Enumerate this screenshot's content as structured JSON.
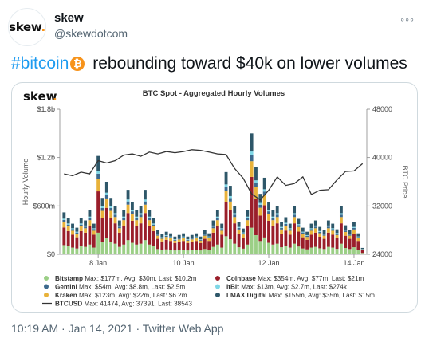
{
  "tweet": {
    "display_name": "skew",
    "handle": "@skewdotcom",
    "hashtag": "#bitcoin",
    "text": "rebounding toward $40k on lower volumes",
    "timestamp": "10:19 AM · Jan 14, 2021",
    "separator": "·",
    "source": "Twitter Web App",
    "more_label": "◦◦◦"
  },
  "avatar_logo": {
    "text": "skew",
    "dot": "."
  },
  "chart_logo": {
    "text": "skew",
    "dot": "."
  },
  "colors": {
    "accent": "#1d9bf0",
    "bitcoin_orange": "#f7931a",
    "text_secondary": "#536471",
    "Bitstamp": "#9bcf86",
    "Coinbase": "#9a1e2a",
    "Gemini": "#3d6a8e",
    "ItBit": "#7fd7e6",
    "Kraken": "#e8b23a",
    "LMAX Digital": "#2e5769",
    "BTCUSD": "#333333"
  },
  "chart_data": {
    "type": "bar",
    "title": "BTC Spot - Aggregated Hourly Volumes",
    "ylabel": "Hourly Volume",
    "y2label": "BTC Price",
    "ylim": [
      0,
      1.8
    ],
    "y_unit": "billion USD",
    "y_ticks": [
      "$0",
      "$600m",
      "$1.2b",
      "$1.8b"
    ],
    "y_tick_values": [
      0,
      0.6,
      1.2,
      1.8
    ],
    "y2lim": [
      24000,
      48000
    ],
    "y2_ticks": [
      "24000",
      "32000",
      "40000",
      "48000"
    ],
    "y2_tick_values": [
      24000,
      32000,
      40000,
      48000
    ],
    "x_tick_labels": [
      "8 Jan",
      "10 Jan",
      "12 Jan",
      "14 Jan"
    ],
    "x_tick_positions": [
      8,
      10,
      12,
      14
    ],
    "x_range": [
      7.1,
      14.3
    ],
    "grid": false,
    "legend_placement": "bottom",
    "stack_order": [
      "Bitstamp",
      "Coinbase",
      "Kraken",
      "Gemini",
      "ItBit",
      "LMAX Digital"
    ],
    "legend": [
      {
        "name": "Bitstamp",
        "stats": "Max: $177m, Avg: $30m, Last: $10.2m"
      },
      {
        "name": "Coinbase",
        "stats": "Max: $354m, Avg: $77m, Last: $21m"
      },
      {
        "name": "Gemini",
        "stats": "Max: $54m, Avg: $8.8m, Last: $2.5m"
      },
      {
        "name": "ItBit",
        "stats": "Max: $13m, Avg: $2.7m, Last: $274k"
      },
      {
        "name": "Kraken",
        "stats": "Max: $123m, Avg: $22m, Last: $6.2m"
      },
      {
        "name": "LMAX Digital",
        "stats": "Max: $155m, Avg: $35m, Last: $15m"
      },
      {
        "name": "BTCUSD",
        "stats": "Max: 41474, Avg: 37391, Last: 38543"
      }
    ],
    "bars_x": [
      7.2,
      7.3,
      7.4,
      7.5,
      7.6,
      7.7,
      7.8,
      7.9,
      8.0,
      8.1,
      8.2,
      8.3,
      8.4,
      8.5,
      8.6,
      8.7,
      8.8,
      8.9,
      9.0,
      9.1,
      9.2,
      9.3,
      9.4,
      9.5,
      9.6,
      9.7,
      9.8,
      9.9,
      10.0,
      10.1,
      10.2,
      10.3,
      10.4,
      10.5,
      10.6,
      10.7,
      10.8,
      10.9,
      11.0,
      11.1,
      11.2,
      11.3,
      11.4,
      11.5,
      11.6,
      11.7,
      11.8,
      11.9,
      12.0,
      12.1,
      12.2,
      12.3,
      12.4,
      12.5,
      12.6,
      12.7,
      12.8,
      12.9,
      13.0,
      13.1,
      13.2,
      13.3,
      13.4,
      13.5,
      13.6,
      13.7,
      13.8,
      13.9,
      14.0,
      14.1,
      14.2
    ],
    "totals": [
      0.52,
      0.45,
      0.38,
      0.33,
      0.45,
      0.42,
      0.55,
      0.38,
      1.22,
      0.7,
      0.9,
      0.7,
      0.6,
      0.42,
      0.55,
      0.8,
      0.65,
      0.55,
      0.6,
      0.8,
      0.55,
      0.45,
      0.3,
      0.25,
      0.28,
      0.26,
      0.22,
      0.24,
      0.26,
      0.22,
      0.24,
      0.26,
      0.22,
      0.3,
      0.26,
      0.42,
      0.55,
      0.38,
      1.02,
      0.85,
      0.6,
      0.4,
      0.32,
      0.55,
      1.5,
      1.08,
      0.75,
      0.95,
      0.65,
      0.55,
      0.6,
      0.4,
      0.46,
      0.38,
      0.6,
      0.44,
      0.33,
      0.28,
      0.38,
      0.42,
      0.34,
      0.3,
      0.42,
      0.38,
      0.31,
      0.6,
      0.36,
      0.3,
      0.4,
      0.26,
      0.08
    ],
    "price_x": [
      7.2,
      7.4,
      7.6,
      7.8,
      8.0,
      8.2,
      8.4,
      8.6,
      8.8,
      9.0,
      9.2,
      9.4,
      9.6,
      9.8,
      10.0,
      10.2,
      10.4,
      10.6,
      10.8,
      11.0,
      11.2,
      11.4,
      11.6,
      11.8,
      12.0,
      12.2,
      12.4,
      12.6,
      12.8,
      13.0,
      13.2,
      13.4,
      13.6,
      13.8,
      14.0,
      14.2
    ],
    "price_y": [
      37300,
      37000,
      37600,
      37300,
      39500,
      39100,
      39500,
      40400,
      40600,
      40200,
      40900,
      40600,
      41000,
      40800,
      41000,
      41300,
      41200,
      40900,
      40600,
      40500,
      38200,
      36600,
      34000,
      33000,
      34600,
      36800,
      35400,
      35700,
      36800,
      33900,
      34600,
      34700,
      36300,
      37700,
      37800,
      39000
    ]
  }
}
